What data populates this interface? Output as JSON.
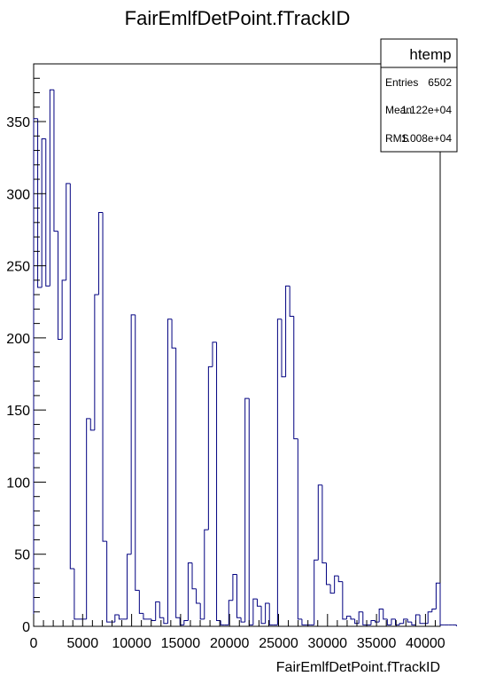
{
  "chart_data": {
    "type": "histogram",
    "title": "FairEmlfDetPoint.fTrackID",
    "xlabel": "FairEmlfDetPoint.fTrackID",
    "ylabel": "",
    "xlim": [
      0,
      41500
    ],
    "ylim": [
      0,
      390
    ],
    "bin_width": 415,
    "xticks": [
      0,
      5000,
      10000,
      15000,
      20000,
      25000,
      30000,
      35000,
      40000
    ],
    "xtick_labels": [
      "0",
      "5000",
      "10000",
      "15000",
      "20000",
      "25000",
      "30000",
      "35000",
      "40000"
    ],
    "yticks": [
      0,
      50,
      100,
      150,
      200,
      250,
      300,
      350
    ],
    "ytick_labels": [
      "0",
      "50",
      "100",
      "150",
      "200",
      "250",
      "300",
      "350"
    ],
    "grid": false,
    "line_color": "#000080",
    "values": [
      352,
      235,
      338,
      236,
      372,
      274,
      199,
      240,
      307,
      40,
      5,
      5,
      5,
      144,
      136,
      230,
      287,
      59,
      3,
      3,
      8,
      5,
      5,
      50,
      216,
      25,
      9,
      5,
      5,
      4,
      17,
      6,
      2,
      213,
      193,
      6,
      1,
      4,
      44,
      26,
      16,
      5,
      67,
      180,
      197,
      4,
      1,
      1,
      18,
      36,
      6,
      3,
      158,
      1,
      19,
      14,
      2,
      16,
      1,
      1,
      213,
      173,
      236,
      215,
      130,
      5,
      1,
      1,
      1,
      46,
      98,
      44,
      29,
      23,
      35,
      31,
      5,
      7,
      5,
      2,
      10,
      1,
      1,
      4,
      3,
      12,
      5,
      1,
      5,
      1,
      2,
      5,
      3,
      1,
      8,
      2,
      2,
      10,
      12,
      30,
      1,
      1,
      1,
      1
    ],
    "stats": {
      "name": "htemp",
      "rows": [
        {
          "label": "Entries",
          "value": "6502"
        },
        {
          "label": "Mean",
          "value": "1.122e+04"
        },
        {
          "label": "RMS",
          "value": "1.008e+04"
        }
      ]
    }
  }
}
